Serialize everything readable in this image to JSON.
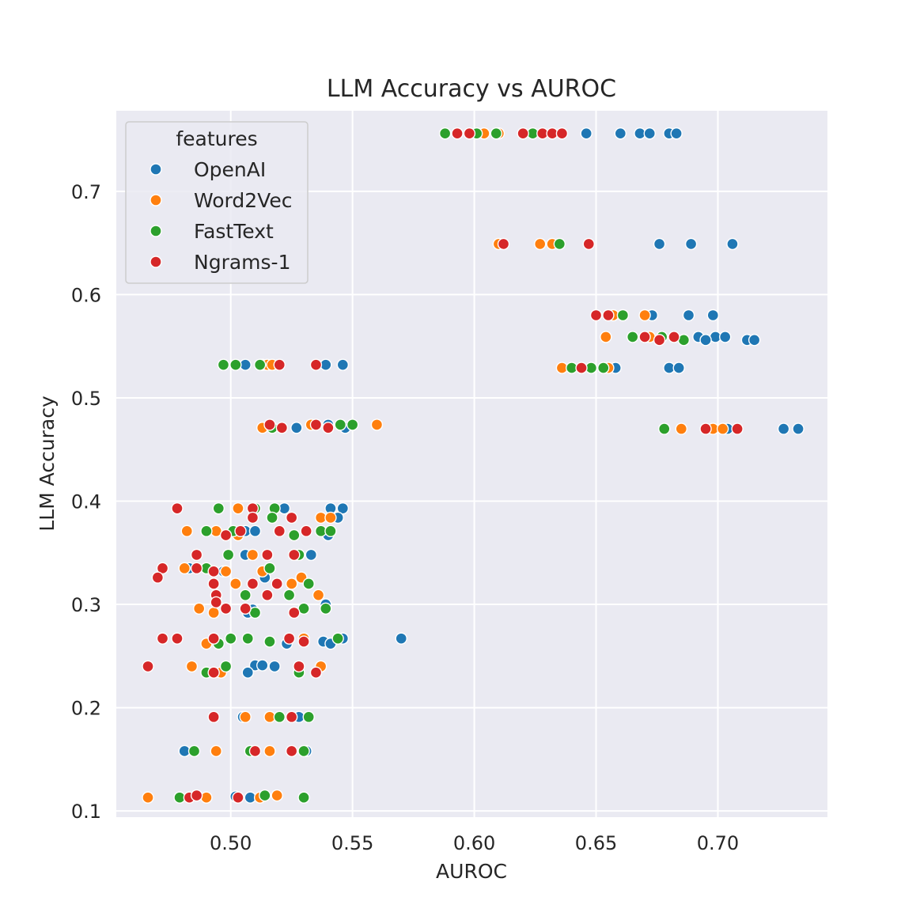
{
  "chart_data": {
    "type": "scatter",
    "title": "LLM Accuracy vs AUROC",
    "xlabel": "AUROC",
    "ylabel": "LLM Accuracy",
    "xlim": [
      0.453,
      0.745
    ],
    "ylim": [
      0.094,
      0.778
    ],
    "xticks": [
      "0.50",
      "0.55",
      "0.60",
      "0.65",
      "0.70"
    ],
    "yticks": [
      "0.1",
      "0.2",
      "0.3",
      "0.4",
      "0.5",
      "0.6",
      "0.7"
    ],
    "grid": true,
    "legend": {
      "title": "features",
      "placement": "top-left"
    },
    "series": [
      {
        "name": "OpenAI",
        "color": "#1f77b4",
        "points": [
          [
            0.646,
            0.756
          ],
          [
            0.66,
            0.756
          ],
          [
            0.668,
            0.756
          ],
          [
            0.672,
            0.756
          ],
          [
            0.68,
            0.756
          ],
          [
            0.683,
            0.756
          ],
          [
            0.676,
            0.649
          ],
          [
            0.689,
            0.649
          ],
          [
            0.706,
            0.649
          ],
          [
            0.673,
            0.58
          ],
          [
            0.688,
            0.58
          ],
          [
            0.698,
            0.58
          ],
          [
            0.692,
            0.559
          ],
          [
            0.699,
            0.559
          ],
          [
            0.703,
            0.559
          ],
          [
            0.712,
            0.556
          ],
          [
            0.715,
            0.556
          ],
          [
            0.695,
            0.556
          ],
          [
            0.658,
            0.529
          ],
          [
            0.68,
            0.529
          ],
          [
            0.684,
            0.529
          ],
          [
            0.727,
            0.47
          ],
          [
            0.733,
            0.47
          ],
          [
            0.704,
            0.47
          ],
          [
            0.506,
            0.532
          ],
          [
            0.539,
            0.532
          ],
          [
            0.546,
            0.532
          ],
          [
            0.527,
            0.471
          ],
          [
            0.54,
            0.474
          ],
          [
            0.547,
            0.471
          ],
          [
            0.522,
            0.393
          ],
          [
            0.541,
            0.393
          ],
          [
            0.546,
            0.393
          ],
          [
            0.544,
            0.384
          ],
          [
            0.506,
            0.371
          ],
          [
            0.51,
            0.371
          ],
          [
            0.54,
            0.367
          ],
          [
            0.506,
            0.348
          ],
          [
            0.533,
            0.348
          ],
          [
            0.483,
            0.335
          ],
          [
            0.497,
            0.332
          ],
          [
            0.514,
            0.326
          ],
          [
            0.539,
            0.3
          ],
          [
            0.509,
            0.295
          ],
          [
            0.507,
            0.292
          ],
          [
            0.546,
            0.267
          ],
          [
            0.538,
            0.264
          ],
          [
            0.541,
            0.262
          ],
          [
            0.57,
            0.267
          ],
          [
            0.523,
            0.262
          ],
          [
            0.51,
            0.241
          ],
          [
            0.518,
            0.24
          ],
          [
            0.513,
            0.241
          ],
          [
            0.507,
            0.234
          ],
          [
            0.505,
            0.191
          ],
          [
            0.528,
            0.191
          ],
          [
            0.481,
            0.158
          ],
          [
            0.531,
            0.158
          ],
          [
            0.502,
            0.114
          ],
          [
            0.508,
            0.113
          ]
        ]
      },
      {
        "name": "Word2Vec",
        "color": "#ff7f0e",
        "points": [
          [
            0.604,
            0.756
          ],
          [
            0.61,
            0.756
          ],
          [
            0.61,
            0.649
          ],
          [
            0.627,
            0.649
          ],
          [
            0.632,
            0.649
          ],
          [
            0.657,
            0.58
          ],
          [
            0.67,
            0.58
          ],
          [
            0.654,
            0.559
          ],
          [
            0.672,
            0.559
          ],
          [
            0.636,
            0.529
          ],
          [
            0.655,
            0.529
          ],
          [
            0.685,
            0.47
          ],
          [
            0.698,
            0.47
          ],
          [
            0.702,
            0.47
          ],
          [
            0.513,
            0.532
          ],
          [
            0.515,
            0.532
          ],
          [
            0.517,
            0.532
          ],
          [
            0.513,
            0.471
          ],
          [
            0.533,
            0.474
          ],
          [
            0.56,
            0.474
          ],
          [
            0.503,
            0.393
          ],
          [
            0.537,
            0.384
          ],
          [
            0.541,
            0.384
          ],
          [
            0.482,
            0.371
          ],
          [
            0.494,
            0.371
          ],
          [
            0.503,
            0.367
          ],
          [
            0.509,
            0.348
          ],
          [
            0.481,
            0.335
          ],
          [
            0.498,
            0.332
          ],
          [
            0.513,
            0.332
          ],
          [
            0.529,
            0.326
          ],
          [
            0.525,
            0.32
          ],
          [
            0.502,
            0.32
          ],
          [
            0.536,
            0.309
          ],
          [
            0.487,
            0.296
          ],
          [
            0.493,
            0.292
          ],
          [
            0.5,
            0.267
          ],
          [
            0.49,
            0.262
          ],
          [
            0.516,
            0.264
          ],
          [
            0.53,
            0.267
          ],
          [
            0.484,
            0.24
          ],
          [
            0.537,
            0.24
          ],
          [
            0.496,
            0.234
          ],
          [
            0.506,
            0.191
          ],
          [
            0.516,
            0.191
          ],
          [
            0.494,
            0.158
          ],
          [
            0.516,
            0.158
          ],
          [
            0.466,
            0.113
          ],
          [
            0.49,
            0.113
          ],
          [
            0.512,
            0.113
          ],
          [
            0.519,
            0.115
          ]
        ]
      },
      {
        "name": "FastText",
        "color": "#2ca02c",
        "points": [
          [
            0.588,
            0.756
          ],
          [
            0.601,
            0.756
          ],
          [
            0.609,
            0.756
          ],
          [
            0.624,
            0.756
          ],
          [
            0.635,
            0.649
          ],
          [
            0.661,
            0.58
          ],
          [
            0.665,
            0.559
          ],
          [
            0.677,
            0.559
          ],
          [
            0.686,
            0.556
          ],
          [
            0.64,
            0.529
          ],
          [
            0.648,
            0.529
          ],
          [
            0.653,
            0.529
          ],
          [
            0.678,
            0.47
          ],
          [
            0.497,
            0.532
          ],
          [
            0.502,
            0.532
          ],
          [
            0.512,
            0.532
          ],
          [
            0.517,
            0.471
          ],
          [
            0.545,
            0.474
          ],
          [
            0.55,
            0.474
          ],
          [
            0.495,
            0.393
          ],
          [
            0.51,
            0.393
          ],
          [
            0.518,
            0.393
          ],
          [
            0.517,
            0.384
          ],
          [
            0.49,
            0.371
          ],
          [
            0.501,
            0.371
          ],
          [
            0.526,
            0.367
          ],
          [
            0.537,
            0.371
          ],
          [
            0.541,
            0.371
          ],
          [
            0.499,
            0.348
          ],
          [
            0.528,
            0.348
          ],
          [
            0.49,
            0.335
          ],
          [
            0.516,
            0.335
          ],
          [
            0.493,
            0.32
          ],
          [
            0.506,
            0.309
          ],
          [
            0.524,
            0.309
          ],
          [
            0.532,
            0.32
          ],
          [
            0.539,
            0.296
          ],
          [
            0.53,
            0.296
          ],
          [
            0.51,
            0.292
          ],
          [
            0.5,
            0.267
          ],
          [
            0.507,
            0.267
          ],
          [
            0.495,
            0.262
          ],
          [
            0.516,
            0.264
          ],
          [
            0.544,
            0.267
          ],
          [
            0.498,
            0.24
          ],
          [
            0.49,
            0.234
          ],
          [
            0.528,
            0.234
          ],
          [
            0.52,
            0.191
          ],
          [
            0.532,
            0.191
          ],
          [
            0.485,
            0.158
          ],
          [
            0.508,
            0.158
          ],
          [
            0.53,
            0.158
          ],
          [
            0.479,
            0.113
          ],
          [
            0.514,
            0.115
          ],
          [
            0.53,
            0.113
          ]
        ]
      },
      {
        "name": "Ngrams-1",
        "color": "#d62728",
        "points": [
          [
            0.593,
            0.756
          ],
          [
            0.598,
            0.756
          ],
          [
            0.62,
            0.756
          ],
          [
            0.628,
            0.756
          ],
          [
            0.632,
            0.756
          ],
          [
            0.636,
            0.756
          ],
          [
            0.612,
            0.649
          ],
          [
            0.647,
            0.649
          ],
          [
            0.65,
            0.58
          ],
          [
            0.655,
            0.58
          ],
          [
            0.67,
            0.559
          ],
          [
            0.676,
            0.556
          ],
          [
            0.682,
            0.559
          ],
          [
            0.644,
            0.529
          ],
          [
            0.695,
            0.47
          ],
          [
            0.708,
            0.47
          ],
          [
            0.52,
            0.532
          ],
          [
            0.535,
            0.532
          ],
          [
            0.516,
            0.474
          ],
          [
            0.521,
            0.471
          ],
          [
            0.535,
            0.474
          ],
          [
            0.54,
            0.471
          ],
          [
            0.478,
            0.393
          ],
          [
            0.509,
            0.393
          ],
          [
            0.509,
            0.384
          ],
          [
            0.525,
            0.384
          ],
          [
            0.52,
            0.371
          ],
          [
            0.531,
            0.371
          ],
          [
            0.498,
            0.367
          ],
          [
            0.504,
            0.371
          ],
          [
            0.515,
            0.348
          ],
          [
            0.526,
            0.348
          ],
          [
            0.486,
            0.348
          ],
          [
            0.472,
            0.335
          ],
          [
            0.47,
            0.326
          ],
          [
            0.486,
            0.335
          ],
          [
            0.493,
            0.332
          ],
          [
            0.493,
            0.32
          ],
          [
            0.509,
            0.32
          ],
          [
            0.519,
            0.32
          ],
          [
            0.494,
            0.309
          ],
          [
            0.515,
            0.309
          ],
          [
            0.498,
            0.296
          ],
          [
            0.506,
            0.296
          ],
          [
            0.526,
            0.292
          ],
          [
            0.494,
            0.302
          ],
          [
            0.472,
            0.267
          ],
          [
            0.478,
            0.267
          ],
          [
            0.493,
            0.267
          ],
          [
            0.524,
            0.267
          ],
          [
            0.53,
            0.264
          ],
          [
            0.466,
            0.24
          ],
          [
            0.528,
            0.24
          ],
          [
            0.493,
            0.234
          ],
          [
            0.535,
            0.234
          ],
          [
            0.493,
            0.191
          ],
          [
            0.525,
            0.191
          ],
          [
            0.51,
            0.158
          ],
          [
            0.525,
            0.158
          ],
          [
            0.483,
            0.113
          ],
          [
            0.486,
            0.115
          ],
          [
            0.503,
            0.113
          ]
        ]
      }
    ]
  }
}
